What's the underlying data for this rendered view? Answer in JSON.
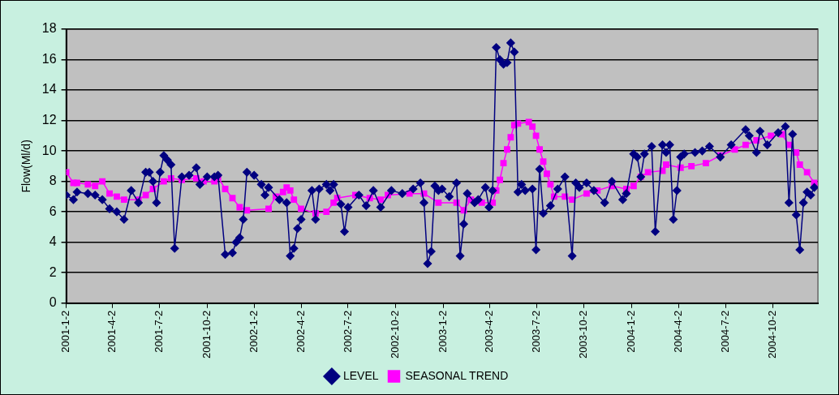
{
  "chart_data": {
    "type": "line",
    "ylabel": "Flow(Ml/d)",
    "xlim": [
      "2001-01-02",
      "2004-12-28"
    ],
    "ylim": [
      0,
      18
    ],
    "yticks": [
      0,
      2,
      4,
      6,
      8,
      10,
      12,
      14,
      16,
      18
    ],
    "xticks": [
      {
        "value": "2001-01-02",
        "label": "2001-1-2"
      },
      {
        "value": "2001-04-02",
        "label": "2001-4-2"
      },
      {
        "value": "2001-07-02",
        "label": "2001-7-2"
      },
      {
        "value": "2001-10-02",
        "label": "2001-10-2"
      },
      {
        "value": "2002-01-02",
        "label": "2002-1-2"
      },
      {
        "value": "2002-04-02",
        "label": "2002-4-2"
      },
      {
        "value": "2002-07-02",
        "label": "2002-7-2"
      },
      {
        "value": "2002-10-02",
        "label": "2002-10-2"
      },
      {
        "value": "2003-01-02",
        "label": "2003-1-2"
      },
      {
        "value": "2003-04-02",
        "label": "2003-4-2"
      },
      {
        "value": "2003-07-02",
        "label": "2003-7-2"
      },
      {
        "value": "2003-10-02",
        "label": "2003-10-2"
      },
      {
        "value": "2004-01-02",
        "label": "2004-1-2"
      },
      {
        "value": "2004-04-02",
        "label": "2004-4-2"
      },
      {
        "value": "2004-07-02",
        "label": "2004-7-2"
      },
      {
        "value": "2004-10-02",
        "label": "2004-10-2"
      }
    ],
    "grid": "y",
    "legend": "bottom",
    "line_style": "solid",
    "series": [
      {
        "name": "LEVEL",
        "color": "#000080",
        "marker": "diamond",
        "x": [
          "2001-01-02",
          "2001-01-16",
          "2001-01-23",
          "2001-02-13",
          "2001-02-27",
          "2001-03-13",
          "2001-03-27",
          "2001-04-10",
          "2001-04-24",
          "2001-05-08",
          "2001-05-22",
          "2001-06-05",
          "2001-06-12",
          "2001-06-19",
          "2001-06-26",
          "2001-07-03",
          "2001-07-10",
          "2001-07-17",
          "2001-07-24",
          "2001-07-31",
          "2001-08-14",
          "2001-08-28",
          "2001-09-11",
          "2001-09-18",
          "2001-10-02",
          "2001-10-16",
          "2001-10-23",
          "2001-11-06",
          "2001-11-20",
          "2001-11-27",
          "2001-12-04",
          "2001-12-11",
          "2001-12-18",
          "2002-01-01",
          "2002-01-15",
          "2002-01-22",
          "2002-01-29",
          "2002-02-19",
          "2002-03-05",
          "2002-03-12",
          "2002-03-19",
          "2002-03-26",
          "2002-04-02",
          "2002-04-23",
          "2002-04-30",
          "2002-05-07",
          "2002-05-21",
          "2002-05-28",
          "2002-06-04",
          "2002-06-18",
          "2002-06-25",
          "2002-07-02",
          "2002-07-23",
          "2002-08-06",
          "2002-08-20",
          "2002-09-03",
          "2002-09-24",
          "2002-10-15",
          "2002-11-05",
          "2002-11-19",
          "2002-11-26",
          "2002-12-03",
          "2002-12-10",
          "2002-12-17",
          "2002-12-24",
          "2002-12-31",
          "2003-01-14",
          "2003-01-28",
          "2003-02-04",
          "2003-02-11",
          "2003-02-18",
          "2003-03-04",
          "2003-03-11",
          "2003-03-25",
          "2003-04-01",
          "2003-04-08",
          "2003-04-15",
          "2003-04-22",
          "2003-04-29",
          "2003-05-06",
          "2003-05-13",
          "2003-05-20",
          "2003-05-27",
          "2003-06-03",
          "2003-06-10",
          "2003-06-24",
          "2003-07-01",
          "2003-07-08",
          "2003-07-15",
          "2003-07-29",
          "2003-08-12",
          "2003-08-26",
          "2003-09-09",
          "2003-09-16",
          "2003-09-23",
          "2003-10-07",
          "2003-10-21",
          "2003-11-11",
          "2003-11-25",
          "2003-12-16",
          "2003-12-23",
          "2004-01-06",
          "2004-01-13",
          "2004-01-20",
          "2004-01-27",
          "2004-02-10",
          "2004-02-17",
          "2004-03-02",
          "2004-03-09",
          "2004-03-16",
          "2004-03-23",
          "2004-03-30",
          "2004-04-06",
          "2004-04-13",
          "2004-05-04",
          "2004-05-18",
          "2004-06-01",
          "2004-06-22",
          "2004-07-13",
          "2004-08-10",
          "2004-08-17",
          "2004-08-31",
          "2004-09-07",
          "2004-09-21",
          "2004-10-12",
          "2004-10-26",
          "2004-11-02",
          "2004-11-09",
          "2004-11-16",
          "2004-11-23",
          "2004-11-30",
          "2004-12-07",
          "2004-12-14",
          "2004-12-21"
        ],
        "values": [
          7.1,
          6.8,
          7.3,
          7.2,
          7.1,
          6.8,
          6.2,
          6.0,
          5.5,
          7.4,
          6.6,
          8.6,
          8.6,
          8.0,
          6.6,
          8.6,
          9.7,
          9.4,
          9.1,
          3.6,
          8.3,
          8.4,
          8.9,
          7.8,
          8.3,
          8.3,
          8.4,
          3.2,
          3.3,
          4.0,
          4.3,
          5.5,
          8.6,
          8.4,
          7.8,
          7.1,
          7.6,
          6.8,
          6.6,
          3.1,
          3.6,
          4.9,
          5.5,
          7.4,
          5.5,
          7.5,
          7.8,
          7.4,
          7.8,
          6.5,
          4.7,
          6.3,
          7.1,
          6.4,
          7.4,
          6.3,
          7.4,
          7.2,
          7.5,
          7.9,
          6.6,
          2.6,
          3.4,
          7.7,
          7.4,
          7.5,
          7.0,
          7.9,
          3.1,
          5.2,
          7.2,
          6.6,
          6.8,
          7.6,
          6.3,
          7.4,
          16.8,
          16.0,
          15.7,
          15.8,
          17.1,
          16.5,
          7.3,
          7.8,
          7.4,
          7.5,
          3.5,
          8.8,
          5.9,
          6.4,
          7.5,
          8.3,
          3.1,
          7.9,
          7.6,
          7.9,
          7.4,
          6.6,
          8.0,
          6.8,
          7.2,
          9.8,
          9.6,
          8.3,
          9.8,
          10.3,
          4.7,
          10.4,
          9.9,
          10.4,
          5.5,
          7.4,
          9.6,
          9.8,
          9.9,
          10.0,
          10.3,
          9.6,
          10.4,
          11.4,
          11.0,
          9.9,
          11.3,
          10.4,
          11.2,
          11.6,
          6.6,
          11.1,
          5.8,
          3.5,
          6.6,
          7.3,
          7.1,
          7.6
        ]
      },
      {
        "name": "SEASONAL TREND",
        "color": "#ff00ff",
        "marker": "square",
        "x": [
          "2001-01-02",
          "2001-01-16",
          "2001-01-23",
          "2001-02-13",
          "2001-02-27",
          "2001-03-13",
          "2001-03-27",
          "2001-04-10",
          "2001-04-24",
          "2001-05-22",
          "2001-06-05",
          "2001-06-19",
          "2001-07-10",
          "2001-07-24",
          "2001-08-14",
          "2001-09-11",
          "2001-09-25",
          "2001-10-16",
          "2001-10-23",
          "2001-11-06",
          "2001-11-20",
          "2001-12-04",
          "2001-12-18",
          "2002-01-29",
          "2002-02-12",
          "2002-02-26",
          "2002-03-05",
          "2002-03-12",
          "2002-03-19",
          "2002-04-02",
          "2002-04-30",
          "2002-05-21",
          "2002-06-04",
          "2002-06-11",
          "2002-07-16",
          "2002-08-13",
          "2002-09-03",
          "2002-09-17",
          "2002-10-29",
          "2002-11-26",
          "2002-12-24",
          "2003-01-28",
          "2003-02-11",
          "2003-02-25",
          "2003-03-18",
          "2003-04-08",
          "2003-04-15",
          "2003-04-22",
          "2003-04-29",
          "2003-05-06",
          "2003-05-13",
          "2003-05-20",
          "2003-05-27",
          "2003-06-17",
          "2003-06-24",
          "2003-07-01",
          "2003-07-08",
          "2003-07-15",
          "2003-07-22",
          "2003-07-29",
          "2003-08-05",
          "2003-08-26",
          "2003-09-09",
          "2003-10-07",
          "2003-10-28",
          "2003-11-25",
          "2003-12-23",
          "2004-01-06",
          "2004-01-20",
          "2004-02-03",
          "2004-03-02",
          "2004-03-09",
          "2004-04-06",
          "2004-04-27",
          "2004-05-25",
          "2004-06-22",
          "2004-07-20",
          "2004-08-10",
          "2004-08-31",
          "2004-09-28",
          "2004-10-19",
          "2004-11-02",
          "2004-11-16",
          "2004-11-23",
          "2004-12-07",
          "2004-12-21"
        ],
        "values": [
          8.6,
          7.9,
          7.9,
          7.8,
          7.7,
          8.0,
          7.2,
          7.0,
          6.8,
          6.8,
          7.1,
          7.5,
          8.0,
          8.2,
          8.1,
          8.2,
          8.0,
          8.0,
          8.3,
          7.5,
          6.9,
          6.3,
          6.1,
          6.2,
          7.0,
          7.3,
          7.6,
          7.4,
          6.8,
          6.2,
          5.9,
          6.0,
          6.6,
          6.9,
          7.1,
          6.9,
          6.8,
          7.1,
          7.2,
          7.2,
          6.6,
          6.6,
          6.1,
          6.8,
          6.6,
          6.6,
          7.4,
          8.1,
          9.2,
          10.1,
          10.9,
          11.7,
          11.8,
          11.9,
          11.6,
          11.0,
          10.1,
          9.3,
          8.5,
          7.8,
          7.0,
          7.0,
          6.8,
          7.2,
          7.4,
          7.7,
          7.5,
          7.7,
          8.3,
          8.6,
          8.7,
          9.1,
          8.9,
          9.0,
          9.2,
          9.7,
          10.1,
          10.4,
          10.7,
          11.0,
          11.1,
          10.4,
          9.9,
          9.1,
          8.6,
          7.9
        ]
      }
    ]
  }
}
